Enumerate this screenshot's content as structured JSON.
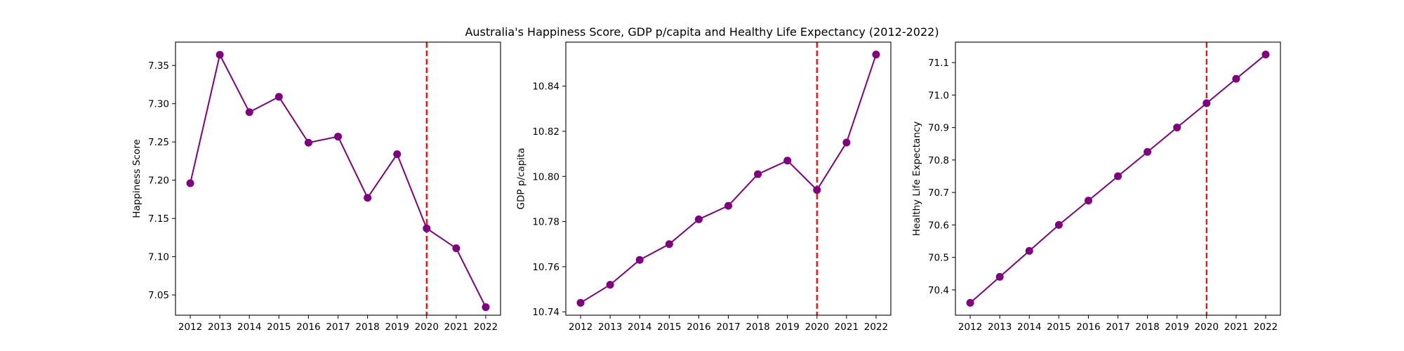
{
  "figure": {
    "title": "Australia's Happiness Score, GDP p/capita and Healthy Life Expectancy (2012-2022)"
  },
  "colors": {
    "line": "#800080",
    "marker": "#800080",
    "reference_line": "#ff0000",
    "axes": "#000000"
  },
  "chart_data": [
    {
      "type": "line",
      "title": "",
      "xlabel": "",
      "ylabel": "Happiness Score",
      "x": [
        2012,
        2013,
        2014,
        2015,
        2016,
        2017,
        2018,
        2019,
        2020,
        2021,
        2022
      ],
      "x_ticks": [
        "2012",
        "2013",
        "2014",
        "2015",
        "2016",
        "2017",
        "2018",
        "2019",
        "2020",
        "2021",
        "2022"
      ],
      "series": [
        {
          "values": [
            7.196,
            7.364,
            7.289,
            7.309,
            7.249,
            7.257,
            7.177,
            7.234,
            7.137,
            7.111,
            7.034
          ]
        }
      ],
      "ylim": [
        7.0235,
        7.3805
      ],
      "y_ticks": [
        7.05,
        7.1,
        7.15,
        7.2,
        7.25,
        7.3,
        7.35
      ],
      "y_tick_labels": [
        "7.05",
        "7.10",
        "7.15",
        "7.20",
        "7.25",
        "7.30",
        "7.35"
      ],
      "reference_line_x": 2020,
      "grid": false,
      "legend": "none"
    },
    {
      "type": "line",
      "title": "",
      "xlabel": "",
      "ylabel": "GDP p/capita",
      "x": [
        2012,
        2013,
        2014,
        2015,
        2016,
        2017,
        2018,
        2019,
        2020,
        2021,
        2022
      ],
      "x_ticks": [
        "2012",
        "2013",
        "2014",
        "2015",
        "2016",
        "2017",
        "2018",
        "2019",
        "2020",
        "2021",
        "2022"
      ],
      "series": [
        {
          "values": [
            10.744,
            10.752,
            10.763,
            10.77,
            10.781,
            10.787,
            10.801,
            10.807,
            10.794,
            10.815,
            10.854
          ]
        }
      ],
      "ylim": [
        10.7385,
        10.8595
      ],
      "y_ticks": [
        10.74,
        10.76,
        10.78,
        10.8,
        10.82,
        10.84
      ],
      "y_tick_labels": [
        "10.74",
        "10.76",
        "10.78",
        "10.80",
        "10.82",
        "10.84"
      ],
      "reference_line_x": 2020,
      "grid": false,
      "legend": "none"
    },
    {
      "type": "line",
      "title": "",
      "xlabel": "",
      "ylabel": "Healthy Life Expectancy",
      "x": [
        2012,
        2013,
        2014,
        2015,
        2016,
        2017,
        2018,
        2019,
        2020,
        2021,
        2022
      ],
      "x_ticks": [
        "2012",
        "2013",
        "2014",
        "2015",
        "2016",
        "2017",
        "2018",
        "2019",
        "2020",
        "2021",
        "2022"
      ],
      "series": [
        {
          "values": [
            70.36,
            70.44,
            70.52,
            70.6,
            70.675,
            70.75,
            70.825,
            70.9,
            70.975,
            71.05,
            71.125
          ]
        }
      ],
      "ylim": [
        70.322,
        71.163
      ],
      "y_ticks": [
        70.4,
        70.5,
        70.6,
        70.7,
        70.8,
        70.9,
        71.0,
        71.1
      ],
      "y_tick_labels": [
        "70.4",
        "70.5",
        "70.6",
        "70.7",
        "70.8",
        "70.9",
        "71.0",
        "71.1"
      ],
      "reference_line_x": 2020,
      "grid": false,
      "legend": "none"
    }
  ]
}
